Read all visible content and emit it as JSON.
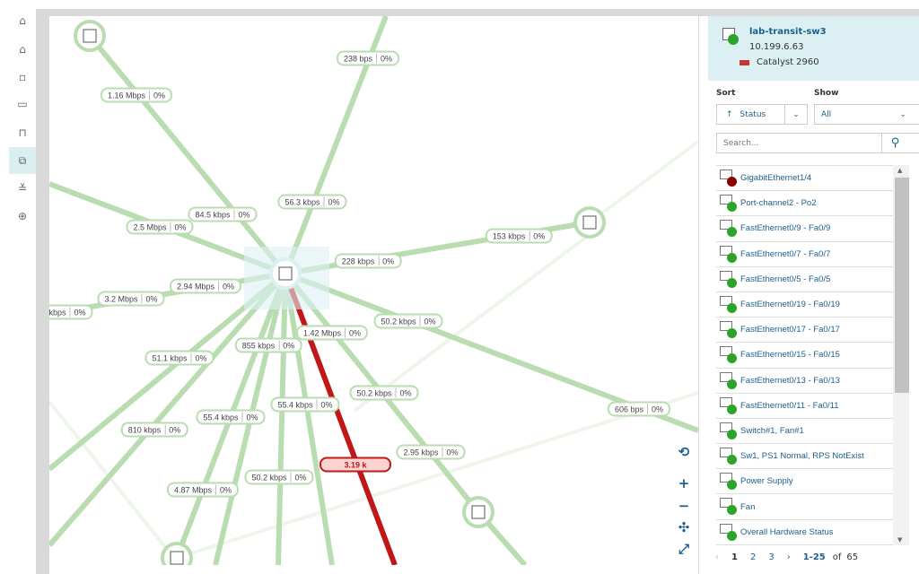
{
  "nav": {
    "items": [
      "home-icon",
      "home-icon",
      "report-icon",
      "monitor-icon",
      "port-icon",
      "topology-icon",
      "tools-icon",
      "add-icon"
    ],
    "active": 5
  },
  "map": {
    "links": [
      {
        "traffic": "1.16 Mbps",
        "util": "0%"
      },
      {
        "traffic": "238 bps",
        "util": "0%"
      },
      {
        "traffic": "84.5 kbps",
        "util": "0%"
      },
      {
        "traffic": "56.3 kbps",
        "util": "0%"
      },
      {
        "traffic": "2.5 Mbps",
        "util": "0%"
      },
      {
        "traffic": "153 kbps",
        "util": "0%"
      },
      {
        "traffic": "228 kbps",
        "util": "0%"
      },
      {
        "traffic": "2.94 Mbps",
        "util": "0%"
      },
      {
        "traffic": "3.2 Mbps",
        "util": "0%"
      },
      {
        "traffic": "kbps",
        "util": "0%"
      },
      {
        "traffic": "50.2 kbps",
        "util": "0%"
      },
      {
        "traffic": "1.42 Mbps",
        "util": "0%"
      },
      {
        "traffic": "855 kbps",
        "util": "0%"
      },
      {
        "traffic": "51.1 kbps",
        "util": "0%"
      },
      {
        "traffic": "50.2 kbps",
        "util": "0%"
      },
      {
        "traffic": "55.4 kbps",
        "util": "0%"
      },
      {
        "traffic": "606 bps",
        "util": "0%"
      },
      {
        "traffic": "55.4 kbps",
        "util": "0%"
      },
      {
        "traffic": "810 kbps",
        "util": "0%"
      },
      {
        "traffic": "2.95 kbps",
        "util": "0%"
      },
      {
        "traffic": "50.2 kbps",
        "util": "0%"
      },
      {
        "traffic": "4.87 Mbps",
        "util": "0%"
      }
    ],
    "alert_label": "3.19 k",
    "colors": {
      "link": "#b9ddb1",
      "alert": "#c01818"
    }
  },
  "tools": [
    "reset-layout-icon",
    "zoom-in-icon",
    "zoom-out-icon",
    "fit-icon",
    "expand-icon"
  ],
  "device": {
    "name": "lab-transit-sw3",
    "ip": "10.199.6.63",
    "model": "Catalyst 2960",
    "status": "up"
  },
  "sort": {
    "label": "Sort",
    "value": "Status"
  },
  "show": {
    "label": "Show",
    "value": "All"
  },
  "search": {
    "placeholder": "Search..."
  },
  "items": [
    {
      "name": "GigabitEthernet1/4",
      "status": "down"
    },
    {
      "name": "Port-channel2 - Po2",
      "status": "up"
    },
    {
      "name": "FastEthernet0/9 - Fa0/9",
      "status": "up"
    },
    {
      "name": "FastEthernet0/7 - Fa0/7",
      "status": "up"
    },
    {
      "name": "FastEthernet0/5 - Fa0/5",
      "status": "up"
    },
    {
      "name": "FastEthernet0/19 - Fa0/19",
      "status": "up"
    },
    {
      "name": "FastEthernet0/17 - Fa0/17",
      "status": "up"
    },
    {
      "name": "FastEthernet0/15 - Fa0/15",
      "status": "up"
    },
    {
      "name": "FastEthernet0/13 - Fa0/13",
      "status": "up"
    },
    {
      "name": "FastEthernet0/11 - Fa0/11",
      "status": "up"
    },
    {
      "name": "Switch#1, Fan#1",
      "status": "up"
    },
    {
      "name": "Sw1, PS1 Normal, RPS NotExist",
      "status": "up"
    },
    {
      "name": "Power Supply",
      "status": "up"
    },
    {
      "name": "Fan",
      "status": "up"
    },
    {
      "name": "Overall Hardware Status",
      "status": "up"
    }
  ],
  "pager": {
    "pages": [
      "1",
      "2",
      "3"
    ],
    "range": "1-25",
    "of": "of",
    "total": "65"
  }
}
